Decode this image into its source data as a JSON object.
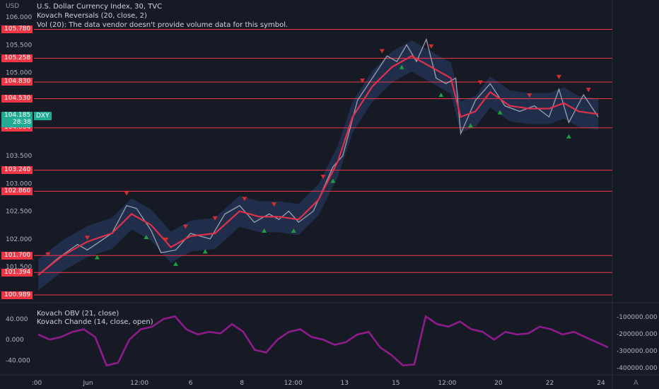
{
  "header": {
    "currency": "USD",
    "title": "U.S. Dollar Currency Index, 30, TVC",
    "indicator1": "Kovach Reversals (20, close, 2)",
    "indicator2": "Vol (20): The data vendor doesn't provide volume data for this symbol."
  },
  "symbol": {
    "ticker": "DXY",
    "price": "104.185",
    "countdown": "28:38"
  },
  "colors": {
    "background": "#161a25",
    "candle": "#b2b5be",
    "ma": "#e0304a",
    "band": "#2a3f6e",
    "level": "#f23645",
    "up_arrow": "#1e9e3c",
    "down_arrow": "#d32f2f",
    "oscillator": "#8e1b8c",
    "tag_green": "#22ab94"
  },
  "subpanel": {
    "line1": "Kovach OBV (21, close)",
    "line2": "Kovach Chande (14, close, open)",
    "left_ticks": [
      "40.000",
      "0.000",
      "-40.000"
    ],
    "right_ticks": [
      "-100000.000",
      "-200000.000",
      "-300000.000",
      "-400000.000"
    ]
  },
  "footer": {
    "corner": "A"
  },
  "chart_data": {
    "type": "line",
    "ylim": [
      100.9,
      105.85
    ],
    "y_ticks": [
      106.0,
      105.5,
      105.0,
      104.5,
      103.5,
      103.0,
      102.5,
      102.0,
      101.5
    ],
    "y_tick_labels": [
      "106.000",
      "105.500",
      "105.000",
      "104.500",
      "103.500",
      "103.000",
      "102.500",
      "102.000",
      "101.500"
    ],
    "x_tick_labels": [
      ":00",
      "Jun",
      "12:00",
      "6",
      "8",
      "12:00",
      "13",
      "15",
      "12:00",
      "20",
      "22",
      "24"
    ],
    "horizontal_levels": [
      105.78,
      105.258,
      104.83,
      104.53,
      104.004,
      103.24,
      102.86,
      101.7,
      101.394,
      100.989
    ],
    "horizontal_level_labels": [
      "105.780",
      "105.258",
      "104.830",
      "104.530",
      "104.004",
      "103.240",
      "102.860",
      "101.700",
      "101.394",
      "100.989"
    ],
    "price_path": [
      [
        0,
        101.35
      ],
      [
        4,
        101.65
      ],
      [
        8,
        101.9
      ],
      [
        10,
        101.8
      ],
      [
        15,
        102.1
      ],
      [
        18,
        102.6
      ],
      [
        20,
        102.55
      ],
      [
        23,
        102.15
      ],
      [
        25,
        101.75
      ],
      [
        28,
        101.8
      ],
      [
        31,
        102.1
      ],
      [
        35,
        102.0
      ],
      [
        38,
        102.45
      ],
      [
        41,
        102.6
      ],
      [
        44,
        102.3
      ],
      [
        47,
        102.45
      ],
      [
        49,
        102.35
      ],
      [
        51,
        102.5
      ],
      [
        53,
        102.3
      ],
      [
        56,
        102.5
      ],
      [
        60,
        103.3
      ],
      [
        62,
        103.5
      ],
      [
        65,
        104.5
      ],
      [
        68,
        104.9
      ],
      [
        71,
        105.3
      ],
      [
        73,
        105.2
      ],
      [
        75,
        105.5
      ],
      [
        77,
        105.2
      ],
      [
        79,
        105.6
      ],
      [
        81,
        104.9
      ],
      [
        83,
        104.8
      ],
      [
        85,
        104.9
      ],
      [
        86,
        103.9
      ],
      [
        89,
        104.5
      ],
      [
        92,
        104.8
      ],
      [
        95,
        104.4
      ],
      [
        98,
        104.3
      ],
      [
        101,
        104.4
      ],
      [
        104,
        104.2
      ],
      [
        106,
        104.7
      ],
      [
        108,
        104.1
      ],
      [
        111,
        104.6
      ],
      [
        114,
        104.2
      ]
    ],
    "ma_path": [
      [
        0,
        101.35
      ],
      [
        5,
        101.7
      ],
      [
        10,
        101.95
      ],
      [
        15,
        102.1
      ],
      [
        19,
        102.45
      ],
      [
        23,
        102.25
      ],
      [
        27,
        101.85
      ],
      [
        31,
        102.05
      ],
      [
        36,
        102.1
      ],
      [
        41,
        102.5
      ],
      [
        45,
        102.4
      ],
      [
        49,
        102.4
      ],
      [
        53,
        102.35
      ],
      [
        57,
        102.7
      ],
      [
        61,
        103.4
      ],
      [
        64,
        104.2
      ],
      [
        68,
        104.75
      ],
      [
        72,
        105.1
      ],
      [
        76,
        105.3
      ],
      [
        80,
        105.1
      ],
      [
        84,
        104.9
      ],
      [
        86,
        104.2
      ],
      [
        89,
        104.3
      ],
      [
        92,
        104.65
      ],
      [
        96,
        104.4
      ],
      [
        100,
        104.35
      ],
      [
        104,
        104.35
      ],
      [
        107,
        104.45
      ],
      [
        110,
        104.3
      ],
      [
        114,
        104.25
      ]
    ],
    "down_arrows": [
      2,
      10,
      18,
      26,
      30,
      36,
      42,
      48,
      58,
      66,
      70,
      80,
      90,
      100,
      106,
      112
    ],
    "up_arrows": [
      12,
      22,
      28,
      34,
      46,
      52,
      60,
      74,
      82,
      88,
      94,
      108
    ],
    "oscillator": {
      "ylim": [
        -60,
        55
      ],
      "values": [
        10,
        0,
        5,
        15,
        20,
        5,
        -50,
        -45,
        0,
        20,
        25,
        40,
        45,
        20,
        10,
        15,
        12,
        30,
        15,
        -20,
        -25,
        0,
        15,
        20,
        5,
        0,
        -10,
        -5,
        10,
        15,
        -15,
        -30,
        -50,
        -48,
        45,
        30,
        25,
        35,
        20,
        15,
        0,
        15,
        10,
        12,
        25,
        20,
        10,
        15,
        5,
        -5,
        -15
      ]
    }
  }
}
